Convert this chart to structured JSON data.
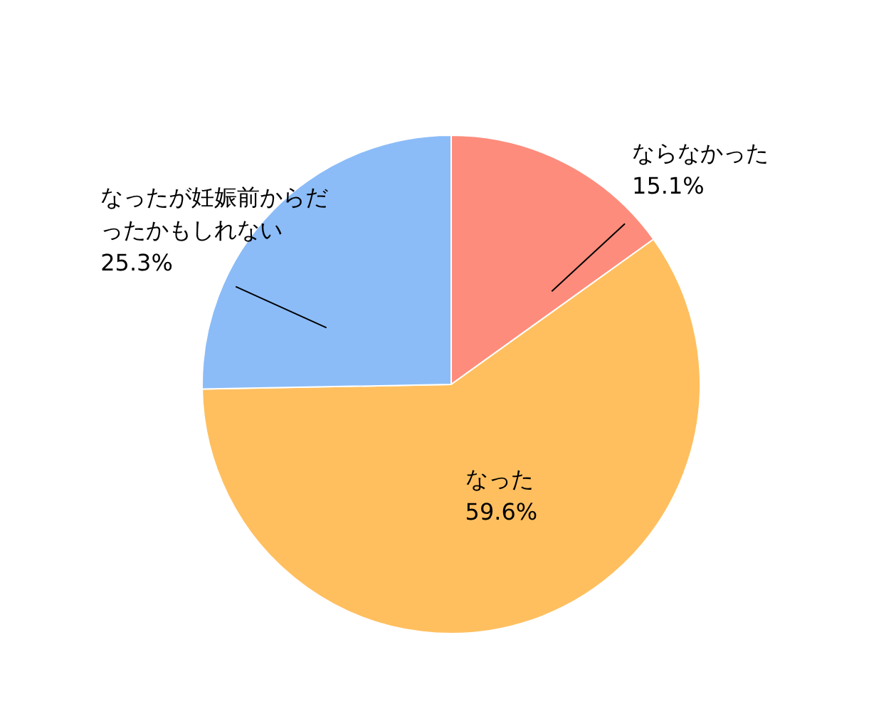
{
  "chart_data": {
    "type": "pie",
    "categories": [
      "ならなかった",
      "なった",
      "なったが妊娠前からだったかもしれない"
    ],
    "values": [
      15.1,
      59.6,
      25.3
    ],
    "value_labels": [
      "15.1%",
      "59.6%",
      "25.3%"
    ],
    "colors": [
      "#fe8c7c",
      "#ffbf5f",
      "#8bbcf8"
    ],
    "legend": false
  }
}
